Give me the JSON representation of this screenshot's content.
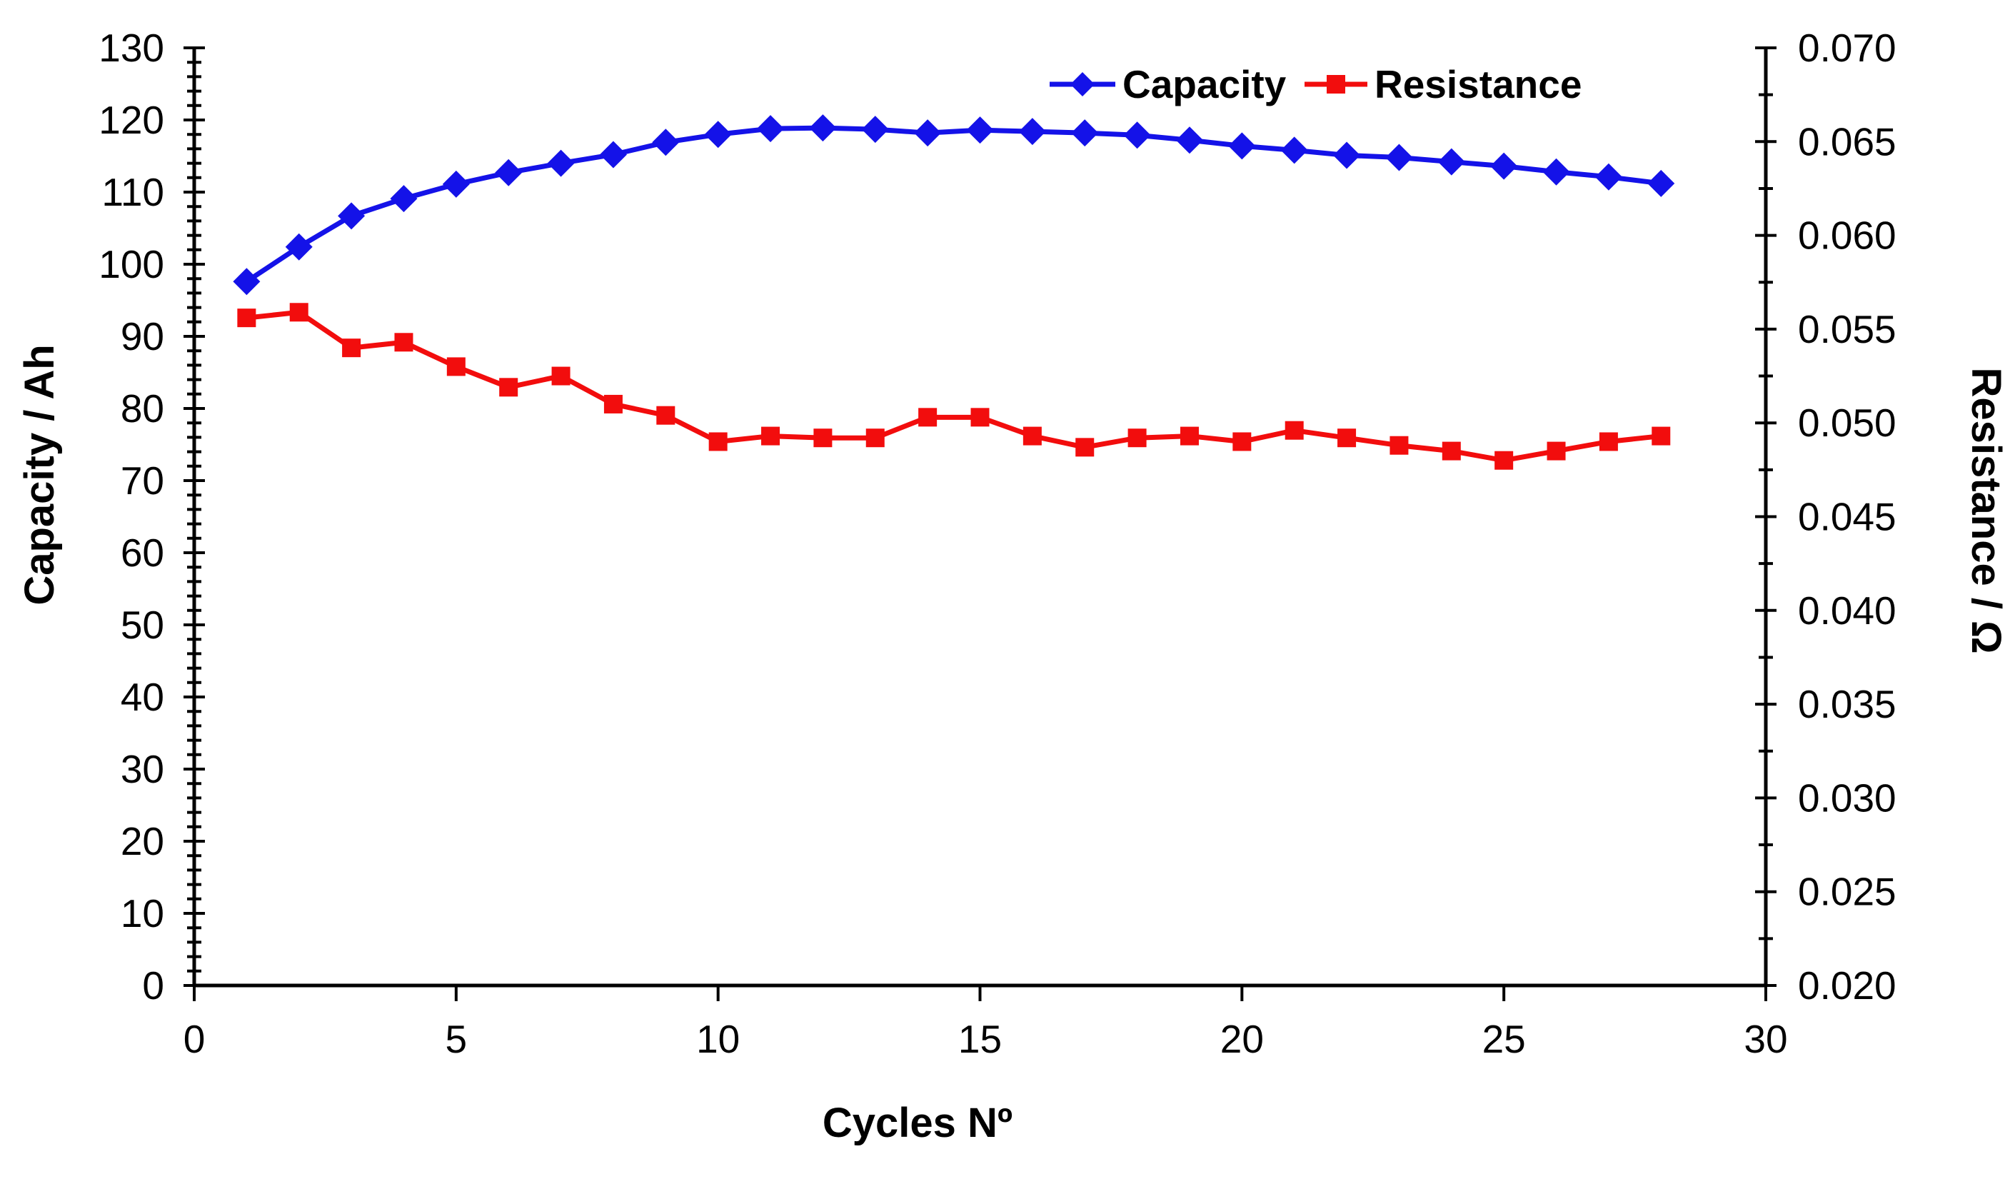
{
  "legend": {
    "items": [
      {
        "label": "Capacity",
        "color": "#1412e8",
        "marker": "diamond"
      },
      {
        "label": "Resistance",
        "color": "#f20d0d",
        "marker": "square"
      }
    ]
  },
  "axes": {
    "x": {
      "title": "Cycles Nº",
      "min": 0,
      "max": 30,
      "major_tick_step": 5,
      "tick_labels": [
        "0",
        "5",
        "10",
        "15",
        "20",
        "25",
        "30"
      ]
    },
    "y_left": {
      "title": "Capacity / Ah",
      "min": 0,
      "max": 130,
      "major_tick_step": 10,
      "minor_tick_step": 2,
      "tick_labels": [
        "0",
        "10",
        "20",
        "30",
        "40",
        "50",
        "60",
        "70",
        "80",
        "90",
        "100",
        "110",
        "120",
        "130"
      ]
    },
    "y_right": {
      "title": "Resistance / Ω",
      "min": 0.02,
      "max": 0.07,
      "major_tick_step": 0.005,
      "minor_tick_step": 0.0025,
      "tick_labels": [
        "0.020",
        "0.025",
        "0.030",
        "0.035",
        "0.040",
        "0.045",
        "0.050",
        "0.055",
        "0.060",
        "0.065",
        "0.070"
      ]
    }
  },
  "chart_data": {
    "type": "line",
    "title": "",
    "xlabel": "Cycles Nº",
    "ylabel_left": "Capacity / Ah",
    "ylabel_right": "Resistance / Ω",
    "grid": false,
    "legend_position": "top-center-inside",
    "x_range": [
      0,
      30
    ],
    "y_left_range": [
      0,
      130
    ],
    "y_right_range": [
      0.02,
      0.07
    ],
    "x": [
      1,
      2,
      3,
      4,
      5,
      6,
      7,
      8,
      9,
      10,
      11,
      12,
      13,
      14,
      15,
      16,
      17,
      18,
      19,
      20,
      21,
      22,
      23,
      24,
      25,
      26,
      27,
      28
    ],
    "series": [
      {
        "name": "Capacity",
        "yaxis": "left",
        "marker": "diamond",
        "color": "#1412e8",
        "values": [
          97.6,
          102.4,
          106.7,
          109.1,
          111.1,
          112.7,
          114.0,
          115.2,
          116.9,
          118.0,
          118.8,
          118.9,
          118.7,
          118.2,
          118.6,
          118.4,
          118.2,
          117.9,
          117.2,
          116.4,
          115.8,
          115.1,
          114.8,
          114.2,
          113.6,
          112.8,
          112.1,
          111.2
        ]
      },
      {
        "name": "Resistance",
        "yaxis": "right",
        "marker": "square",
        "color": "#f20d0d",
        "values": [
          0.0556,
          0.0559,
          0.054,
          0.0543,
          0.053,
          0.0519,
          0.0525,
          0.051,
          0.0504,
          0.049,
          0.0493,
          0.0492,
          0.0492,
          0.0503,
          0.0503,
          0.0493,
          0.0487,
          0.0492,
          0.0493,
          0.049,
          0.0496,
          0.0492,
          0.0488,
          0.0485,
          0.048,
          0.0485,
          0.049,
          0.0493
        ]
      }
    ]
  }
}
